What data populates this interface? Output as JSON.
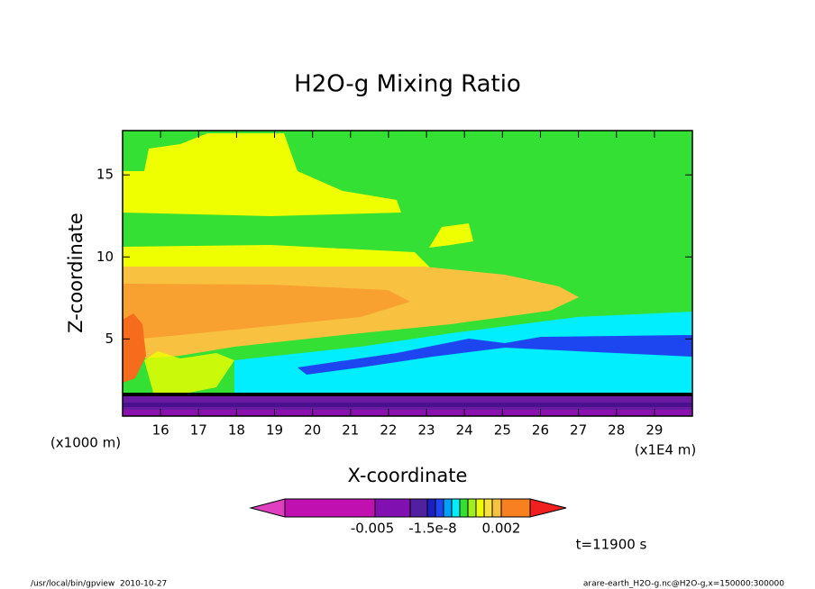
{
  "chart_data": {
    "type": "contour",
    "title": "H2O-g Mixing Ratio",
    "x_label": "X-coordinate",
    "y_label": "Z-coordinate",
    "x_unit_label": "(x1E4 m)",
    "y_unit_label": "(x1000 m)",
    "xlim": [
      15,
      30
    ],
    "ylim": [
      0.3,
      17.7
    ],
    "xticks": [
      16,
      17,
      18,
      19,
      20,
      21,
      22,
      23,
      24,
      25,
      26,
      27,
      28,
      29
    ],
    "yticks": [
      5,
      10,
      15
    ],
    "colorbar_ticks": [
      -0.005,
      -1.5e-08,
      0.002
    ],
    "time_label": "t=11900 s"
  },
  "footer": {
    "left": "/usr/local/bin/gpview  2010-10-27",
    "right": "arare-earth_H2O-g.nc@H2O-g,x=150000:300000"
  }
}
